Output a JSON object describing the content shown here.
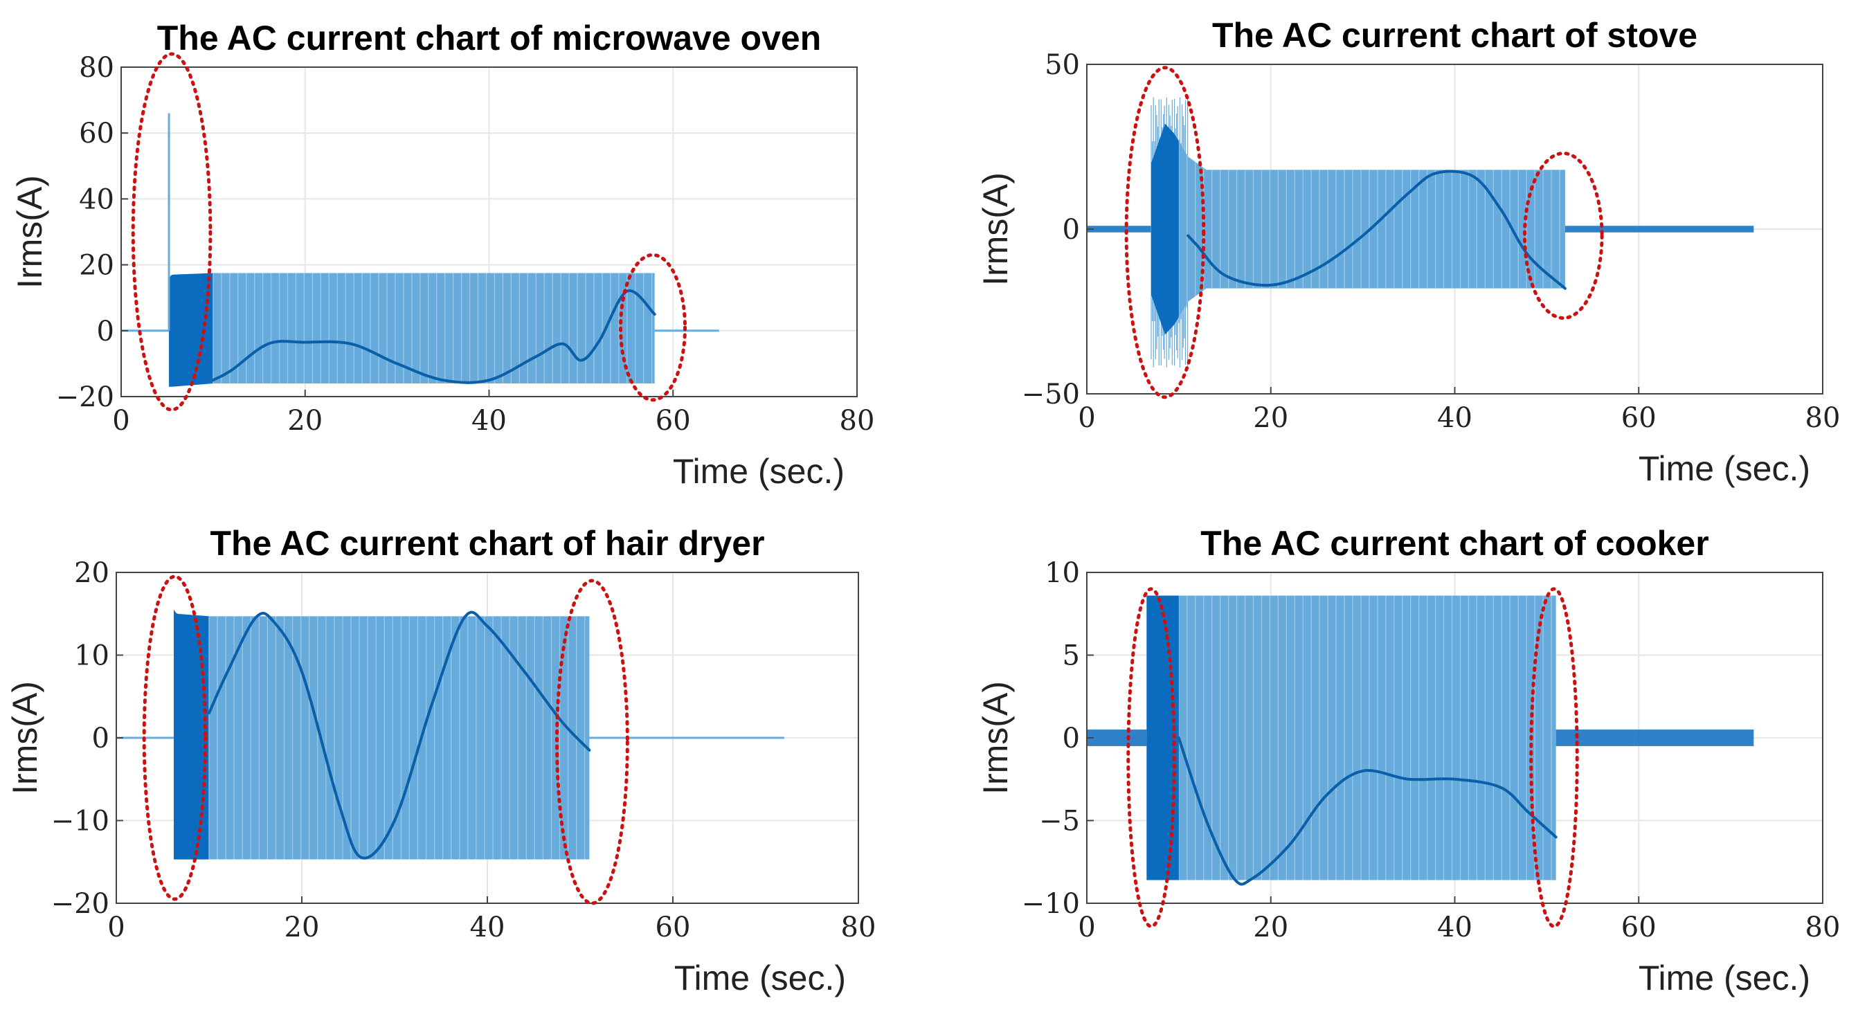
{
  "colors": {
    "envelope": "#66abdb",
    "dense": "#0b6cbf",
    "centerline": "#0a5fa8",
    "ellipse": "#cc1111",
    "grid": "#e6e6e6",
    "axis": "#444444"
  },
  "chart_data": [
    {
      "type": "line",
      "title": "The AC current chart of microwave oven",
      "xlabel": "Time (sec.)",
      "ylabel": "Irms(A)",
      "xlim": [
        0,
        80
      ],
      "ylim": [
        -20,
        80
      ],
      "xticks": [
        0,
        20,
        40,
        60,
        80
      ],
      "yticks": [
        -20,
        0,
        20,
        40,
        60,
        80
      ],
      "xtick_labels": [
        "0",
        "20",
        "40",
        "60",
        "80"
      ],
      "ytick_labels": [
        "−20",
        "0",
        "20",
        "40",
        "60",
        "80"
      ],
      "grid": true,
      "on_interval": [
        5.2,
        58
      ],
      "dense_interval": [
        5.2,
        10
      ],
      "envelope": {
        "x": [
          5.2,
          5.5,
          10,
          58
        ],
        "upper": [
          16,
          17,
          17.5,
          17.5
        ],
        "lower": [
          -17,
          -17,
          -16,
          -16
        ]
      },
      "spike": {
        "x": 5.2,
        "y": 66
      },
      "centerline": {
        "x": [
          10,
          12,
          16,
          20,
          25,
          30,
          35,
          40,
          45,
          48,
          50,
          52,
          55,
          58
        ],
        "y": [
          -15,
          -12,
          -4,
          -3.5,
          -4,
          -10,
          -15,
          -15,
          -8,
          -4,
          -9,
          -3,
          12,
          5
        ]
      },
      "off_segments": [
        {
          "x": [
            0,
            5.2
          ],
          "y": 0
        },
        {
          "x": [
            58,
            65
          ],
          "y": 0
        }
      ],
      "highlights": [
        {
          "center": [
            5.5,
            30
          ],
          "rx": 4.2,
          "ry": 54
        },
        {
          "center": [
            57.8,
            1
          ],
          "rx": 3.5,
          "ry": 22
        }
      ]
    },
    {
      "type": "line",
      "title": "The AC current chart of stove",
      "xlabel": "Time (sec.)",
      "ylabel": "Irms(A)",
      "xlim": [
        0,
        80
      ],
      "ylim": [
        -50,
        50
      ],
      "xticks": [
        0,
        20,
        40,
        60,
        80
      ],
      "yticks": [
        -50,
        0,
        50
      ],
      "xtick_labels": [
        "0",
        "20",
        "40",
        "60",
        "80"
      ],
      "ytick_labels": [
        "−50",
        "0",
        "50"
      ],
      "grid": true,
      "on_interval": [
        7,
        52
      ],
      "dense_interval": [
        7,
        10
      ],
      "envelope": {
        "x": [
          7,
          8.5,
          9.5,
          11,
          13,
          52
        ],
        "upper": [
          20,
          32,
          29,
          22,
          18,
          18
        ],
        "lower": [
          -20,
          -32,
          -29,
          -22,
          -18,
          -18
        ]
      },
      "spike_band": {
        "x": [
          7,
          11
        ],
        "upper": 40,
        "lower": -42
      },
      "centerline": {
        "x": [
          11,
          12,
          15,
          20,
          25,
          30,
          35,
          38,
          42,
          45,
          48,
          52
        ],
        "y": [
          -2,
          -5,
          -14,
          -17,
          -12,
          -2,
          11,
          17,
          16,
          6,
          -8,
          -18
        ]
      },
      "off_segments": [
        {
          "x": [
            0,
            7
          ],
          "y": 0,
          "halfwidth": 1
        },
        {
          "x": [
            52,
            72.5
          ],
          "y": 0,
          "halfwidth": 1
        }
      ],
      "highlights": [
        {
          "center": [
            8.5,
            -1
          ],
          "rx": 4.2,
          "ry": 50
        },
        {
          "center": [
            51.8,
            -2
          ],
          "rx": 4.2,
          "ry": 25
        }
      ]
    },
    {
      "type": "line",
      "title": "The AC current chart of hair dryer",
      "xlabel": "Time (sec.)",
      "ylabel": "Irms(A)",
      "xlim": [
        0,
        80
      ],
      "ylim": [
        -20,
        20
      ],
      "xticks": [
        0,
        20,
        40,
        60,
        80
      ],
      "yticks": [
        -20,
        -10,
        0,
        10,
        20
      ],
      "xtick_labels": [
        "0",
        "20",
        "40",
        "60",
        "80"
      ],
      "ytick_labels": [
        "−20",
        "−10",
        "0",
        "10",
        "20"
      ],
      "grid": true,
      "on_interval": [
        6.2,
        51
      ],
      "dense_interval": [
        6.2,
        10
      ],
      "envelope": {
        "x": [
          6.2,
          6.5,
          10,
          51
        ],
        "upper": [
          15.5,
          15,
          14.7,
          14.7
        ],
        "lower": [
          -14.7,
          -14.7,
          -14.7,
          -14.7
        ]
      },
      "centerline": {
        "x": [
          10,
          12,
          15,
          17,
          20,
          24,
          26.5,
          30,
          34,
          37.5,
          40,
          44,
          48,
          51
        ],
        "y": [
          3,
          8,
          14.5,
          14,
          8,
          -8,
          -14.5,
          -10,
          4,
          14.5,
          13.5,
          8,
          2,
          -1.5
        ]
      },
      "off_segments": [
        {
          "x": [
            0,
            6.2
          ],
          "y": 0
        },
        {
          "x": [
            51,
            72
          ],
          "y": 0
        }
      ],
      "highlights": [
        {
          "center": [
            6.3,
            0
          ],
          "rx": 3.3,
          "ry": 19.5
        },
        {
          "center": [
            51.3,
            -0.5
          ],
          "rx": 3.8,
          "ry": 19.5
        }
      ]
    },
    {
      "type": "line",
      "title": "The AC current chart of cooker",
      "xlabel": "Time (sec.)",
      "ylabel": "Irms(A)",
      "xlim": [
        0,
        80
      ],
      "ylim": [
        -10,
        10
      ],
      "xticks": [
        0,
        20,
        40,
        60,
        80
      ],
      "yticks": [
        -10,
        -5,
        0,
        5,
        10
      ],
      "xtick_labels": [
        "0",
        "20",
        "40",
        "60",
        "80"
      ],
      "ytick_labels": [
        "−10",
        "−5",
        "0",
        "5",
        "10"
      ],
      "grid": true,
      "on_interval": [
        6.5,
        51
      ],
      "dense_interval": [
        6.5,
        10
      ],
      "envelope": {
        "x": [
          6.5,
          51
        ],
        "upper": [
          8.6,
          8.6
        ],
        "lower": [
          -8.6,
          -8.6
        ]
      },
      "centerline": {
        "x": [
          10,
          13,
          16,
          18,
          22,
          26,
          30,
          35,
          40,
          45,
          48,
          51
        ],
        "y": [
          0,
          -5,
          -8.5,
          -8.5,
          -6.5,
          -3.5,
          -2,
          -2.5,
          -2.5,
          -3,
          -4.5,
          -6
        ]
      },
      "off_segments": [
        {
          "x": [
            0,
            6.5
          ],
          "y": 0,
          "halfwidth": 0.5
        },
        {
          "x": [
            51,
            72.5
          ],
          "y": 0,
          "halfwidth": 0.5
        }
      ],
      "highlights": [
        {
          "center": [
            7,
            -1.2
          ],
          "rx": 2.5,
          "ry": 10.2
        },
        {
          "center": [
            50.8,
            -1.2
          ],
          "rx": 2.5,
          "ry": 10.2
        }
      ]
    }
  ]
}
